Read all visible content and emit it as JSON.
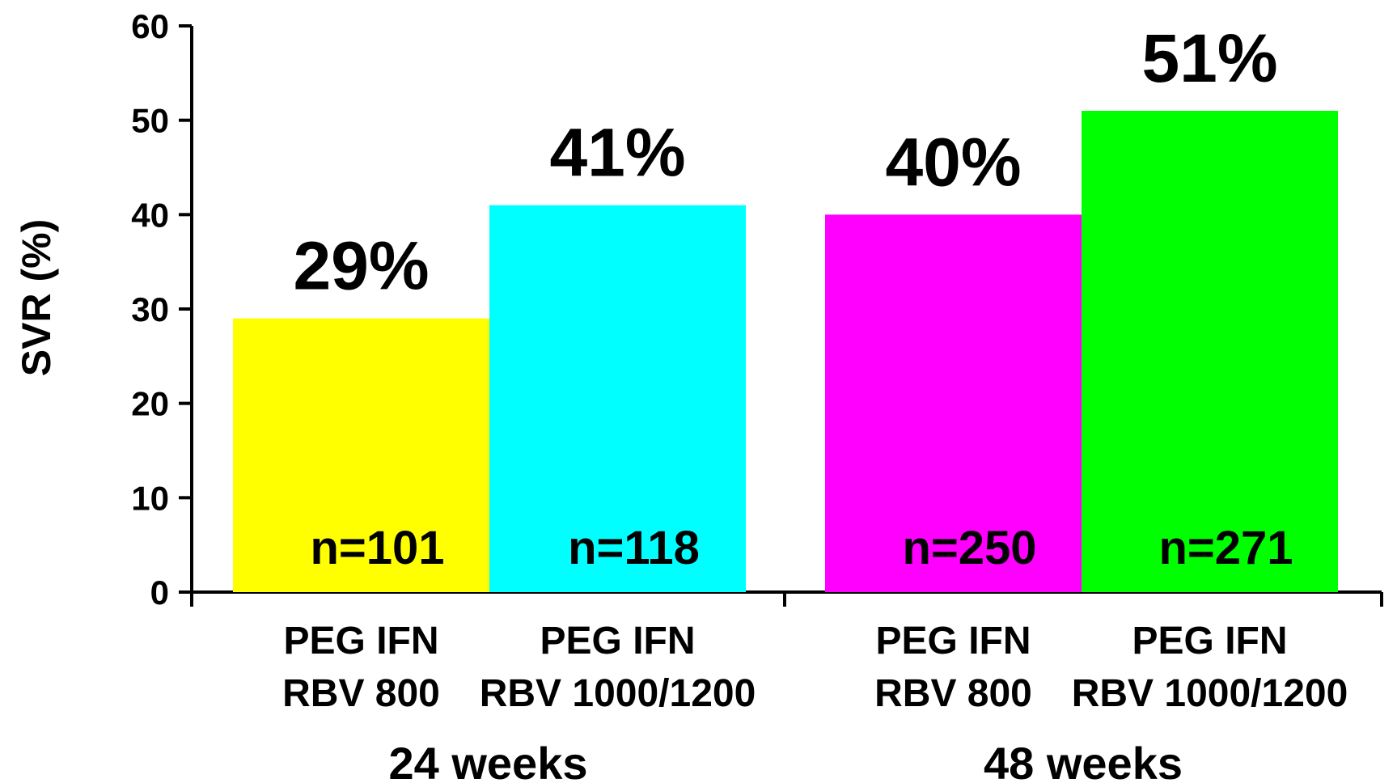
{
  "chart_data": {
    "type": "bar",
    "title": "",
    "ylabel": "SVR (%)",
    "xlabel": "",
    "ylim": [
      0,
      60
    ],
    "yticks": [
      0,
      10,
      20,
      30,
      40,
      50,
      60
    ],
    "grid": false,
    "legend": "none",
    "groups": [
      {
        "label": "24 weeks",
        "bars": [
          {
            "line1": "PEG IFN",
            "line2": "RBV 800",
            "value": 29,
            "value_label": "29%",
            "n_label": "n=101",
            "color": "#ffff00"
          },
          {
            "line1": "PEG IFN",
            "line2": "RBV 1000/1200",
            "value": 41,
            "value_label": "41%",
            "n_label": "n=118",
            "color": "#00ffff"
          }
        ]
      },
      {
        "label": "48 weeks",
        "bars": [
          {
            "line1": "PEG IFN",
            "line2": "RBV 800",
            "value": 40,
            "value_label": "40%",
            "n_label": "n=250",
            "color": "#ff00ff"
          },
          {
            "line1": "PEG IFN",
            "line2": "RBV 1000/1200",
            "value": 51,
            "value_label": "51%",
            "n_label": "n=271",
            "color": "#00ff00"
          }
        ]
      }
    ]
  }
}
